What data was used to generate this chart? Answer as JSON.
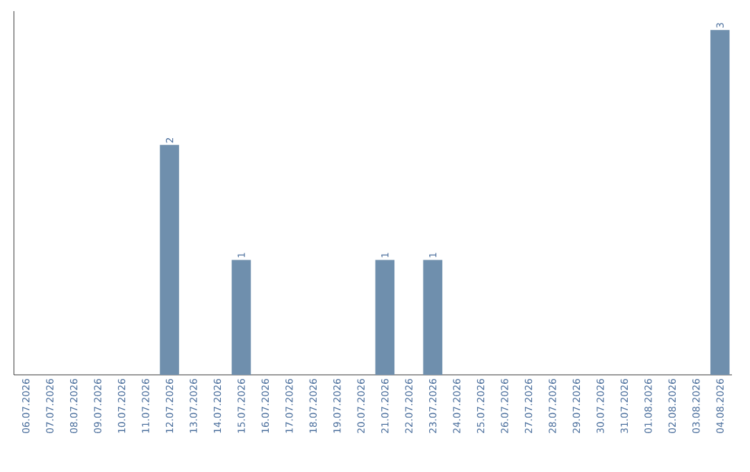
{
  "chart_data": {
    "type": "bar",
    "categories": [
      "06.07.2026",
      "07.07.2026",
      "08.07.2026",
      "09.07.2026",
      "10.07.2026",
      "11.07.2026",
      "12.07.2026",
      "13.07.2026",
      "14.07.2026",
      "15.07.2026",
      "16.07.2026",
      "17.07.2026",
      "18.07.2026",
      "19.07.2026",
      "20.07.2026",
      "21.07.2026",
      "22.07.2026",
      "23.07.2026",
      "24.07.2026",
      "25.07.2026",
      "26.07.2026",
      "27.07.2026",
      "28.07.2026",
      "29.07.2026",
      "30.07.2026",
      "31.07.2026",
      "01.08.2026",
      "02.08.2026",
      "03.08.2026",
      "04.08.2026"
    ],
    "values": [
      0,
      0,
      0,
      0,
      0,
      0,
      2,
      0,
      0,
      1,
      0,
      0,
      0,
      0,
      0,
      1,
      0,
      1,
      0,
      0,
      0,
      0,
      0,
      0,
      0,
      0,
      0,
      0,
      0,
      3
    ],
    "value_labels": [
      null,
      null,
      null,
      null,
      null,
      null,
      "2",
      null,
      null,
      "1",
      null,
      null,
      null,
      null,
      null,
      "1",
      null,
      "1",
      null,
      null,
      null,
      null,
      null,
      null,
      null,
      null,
      null,
      null,
      null,
      "3"
    ],
    "color": "#6f8fad"
  }
}
